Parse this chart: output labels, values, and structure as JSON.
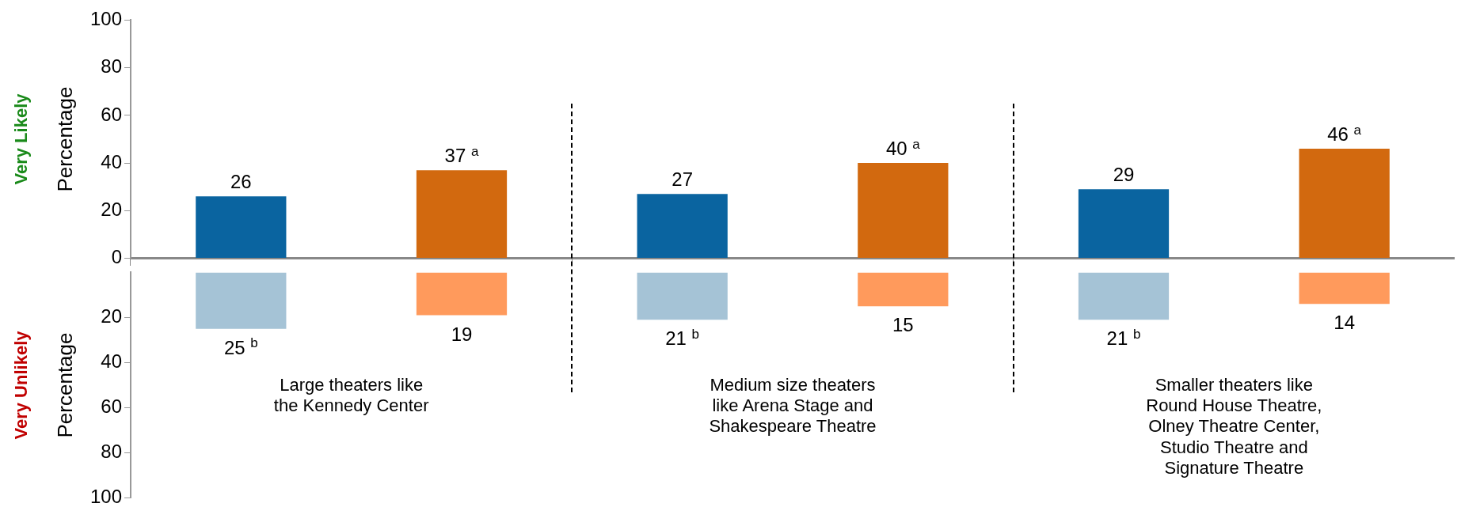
{
  "chart_data": [
    {
      "type": "bar",
      "ylabel": "Percentage",
      "annotations": [
        "Very Likely"
      ],
      "categories": [
        null,
        null,
        null
      ],
      "tick_labels": "y",
      "series": [
        {
          "color": "#0a64a0",
          "values": [
            26,
            27,
            29
          ],
          "value_labels": [
            "26",
            "27",
            "29"
          ]
        },
        {
          "color": "#d2690f",
          "values": [
            37,
            40,
            46
          ],
          "value_labels": [
            "37 $^{a}$",
            "40 $^{a}$",
            "46 $^{a}$"
          ]
        }
      ],
      "ylim": [
        0,
        100
      ],
      "yticks": [
        0,
        20,
        40,
        60,
        80,
        100
      ],
      "grid": false,
      "legend": false
    },
    {
      "type": "bar",
      "ylabel": "Percentage",
      "annotations": [
        "Very Unlikely"
      ],
      "categories": [
        "Large theaters like\nthe Kennedy Center",
        "Medium size theaters\nlike Arena Stage and\nShakespeare Theatre",
        "Smaller theaters like\nRound House Theatre,\nOlney Theatre Center,\nStudio Theatre and\nSignature Theatre"
      ],
      "series": [
        {
          "color": "#a5c3d6",
          "values": [
            25,
            21,
            21
          ],
          "value_labels": [
            "25 $^{b}$",
            "21 $^{b}$",
            "21 $^{b}$"
          ]
        },
        {
          "color": "#ff9a5c",
          "values": [
            19,
            15,
            14
          ],
          "value_labels": [
            "19",
            "15",
            "14"
          ]
        }
      ],
      "ylim": [
        100,
        0
      ],
      "yticks": [
        20,
        40,
        60,
        80,
        100
      ],
      "grid": false,
      "legend": false
    }
  ]
}
